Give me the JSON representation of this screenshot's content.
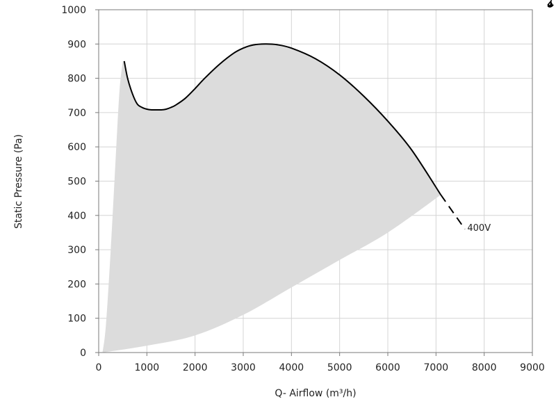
{
  "chart_data": {
    "type": "line",
    "xlabel": "Q- Airflow (m³/h)",
    "ylabel": "Static Pressure (Pa)",
    "xlim": [
      0,
      9000
    ],
    "ylim": [
      0,
      1000
    ],
    "x_ticks": [
      "0",
      "1000",
      "2000",
      "3000",
      "4000",
      "5000",
      "6000",
      "7000",
      "8000",
      "9000"
    ],
    "y_ticks": [
      "0",
      "100",
      "200",
      "300",
      "400",
      "500",
      "600",
      "700",
      "800",
      "900",
      "1000"
    ],
    "grid": true,
    "operating_region": {
      "color": "#dcdcdc",
      "left_boundary": [
        [
          80,
          0
        ],
        [
          150,
          80
        ],
        [
          250,
          300
        ],
        [
          350,
          560
        ],
        [
          430,
          760
        ],
        [
          500,
          850
        ]
      ],
      "lower_boundary": [
        [
          80,
          0
        ],
        [
          1000,
          20
        ],
        [
          2000,
          50
        ],
        [
          3000,
          110
        ],
        [
          4000,
          190
        ],
        [
          5000,
          270
        ],
        [
          6000,
          350
        ],
        [
          7100,
          460
        ]
      ]
    },
    "series": [
      {
        "name": "400V",
        "color": "#000000",
        "x": [
          530,
          600,
          700,
          800,
          900,
          1000,
          1100,
          1200,
          1300,
          1400,
          1500,
          1600,
          1800,
          2000,
          2200,
          2500,
          2800,
          3000,
          3200,
          3450,
          3700,
          4000,
          4500,
          5000,
          5500,
          6000,
          6500,
          7100
        ],
        "y": [
          850,
          800,
          755,
          725,
          715,
          710,
          708,
          708,
          708,
          710,
          715,
          722,
          742,
          770,
          800,
          840,
          873,
          888,
          897,
          900,
          898,
          888,
          857,
          810,
          748,
          675,
          590,
          460
        ]
      }
    ],
    "dashed_extension": {
      "x": [
        7100,
        7300,
        7600
      ],
      "y": [
        460,
        420,
        360
      ]
    }
  }
}
